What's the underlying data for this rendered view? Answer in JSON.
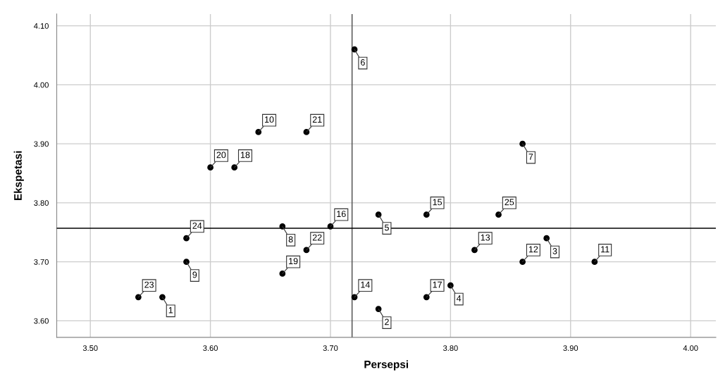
{
  "chart_data": {
    "type": "scatter",
    "xlabel": "Persepsi",
    "ylabel": "Ekspetasi",
    "x": [
      3.56,
      3.74,
      3.88,
      3.8,
      3.74,
      3.72,
      3.86,
      3.66,
      3.58,
      3.64,
      3.92,
      3.86,
      3.82,
      3.72,
      3.78,
      3.7,
      3.78,
      3.62,
      3.66,
      3.6,
      3.68,
      3.68,
      3.54,
      3.58,
      3.84
    ],
    "values": [
      3.64,
      3.62,
      3.74,
      3.66,
      3.78,
      4.06,
      3.9,
      3.76,
      3.7,
      3.92,
      3.7,
      3.7,
      3.72,
      3.64,
      3.78,
      3.76,
      3.64,
      3.86,
      3.68,
      3.86,
      3.92,
      3.72,
      3.64,
      3.74,
      3.78
    ],
    "annotations": [
      {
        "text": "1",
        "x": 3.56,
        "y": 3.64
      },
      {
        "text": "2",
        "x": 3.74,
        "y": 3.62
      },
      {
        "text": "3",
        "x": 3.88,
        "y": 3.74
      },
      {
        "text": "4",
        "x": 3.8,
        "y": 3.66
      },
      {
        "text": "5",
        "x": 3.74,
        "y": 3.78
      },
      {
        "text": "6",
        "x": 3.72,
        "y": 4.06
      },
      {
        "text": "7",
        "x": 3.86,
        "y": 3.9
      },
      {
        "text": "8",
        "x": 3.66,
        "y": 3.76
      },
      {
        "text": "9",
        "x": 3.58,
        "y": 3.7
      },
      {
        "text": "10",
        "x": 3.64,
        "y": 3.92
      },
      {
        "text": "11",
        "x": 3.92,
        "y": 3.7
      },
      {
        "text": "12",
        "x": 3.86,
        "y": 3.7
      },
      {
        "text": "13",
        "x": 3.82,
        "y": 3.72
      },
      {
        "text": "14",
        "x": 3.72,
        "y": 3.64
      },
      {
        "text": "15",
        "x": 3.78,
        "y": 3.78
      },
      {
        "text": "16",
        "x": 3.7,
        "y": 3.76
      },
      {
        "text": "17",
        "x": 3.78,
        "y": 3.64
      },
      {
        "text": "18",
        "x": 3.62,
        "y": 3.86
      },
      {
        "text": "19",
        "x": 3.66,
        "y": 3.68
      },
      {
        "text": "20",
        "x": 3.6,
        "y": 3.86
      },
      {
        "text": "21",
        "x": 3.68,
        "y": 3.92
      },
      {
        "text": "22",
        "x": 3.68,
        "y": 3.72
      },
      {
        "text": "23",
        "x": 3.54,
        "y": 3.64
      },
      {
        "text": "24",
        "x": 3.58,
        "y": 3.74
      },
      {
        "text": "25",
        "x": 3.84,
        "y": 3.78
      }
    ],
    "color": "#000000",
    "marker": "circle",
    "xlim": [
      3.472,
      4.021
    ],
    "ylim": [
      3.572,
      4.12
    ],
    "xticks": [
      {
        "value": 3.5,
        "label": "3.50"
      },
      {
        "value": 3.6,
        "label": "3.60"
      },
      {
        "value": 3.7,
        "label": "3.70"
      },
      {
        "value": 3.8,
        "label": "3.80"
      },
      {
        "value": 3.9,
        "label": "3.90"
      },
      {
        "value": 4.0,
        "label": "4.00"
      }
    ],
    "yticks": [
      {
        "value": 3.6,
        "label": "3.60"
      },
      {
        "value": 3.7,
        "label": "3.70"
      },
      {
        "value": 3.8,
        "label": "3.80"
      },
      {
        "value": 3.9,
        "label": "3.90"
      },
      {
        "value": 4.0,
        "label": "4.00"
      },
      {
        "value": 4.1,
        "label": "4.10"
      }
    ],
    "ref_lines": [
      {
        "axis": "x",
        "value": 3.718,
        "color": "#555555"
      },
      {
        "axis": "y",
        "value": 3.757,
        "color": "#000000"
      }
    ],
    "grid": true
  }
}
